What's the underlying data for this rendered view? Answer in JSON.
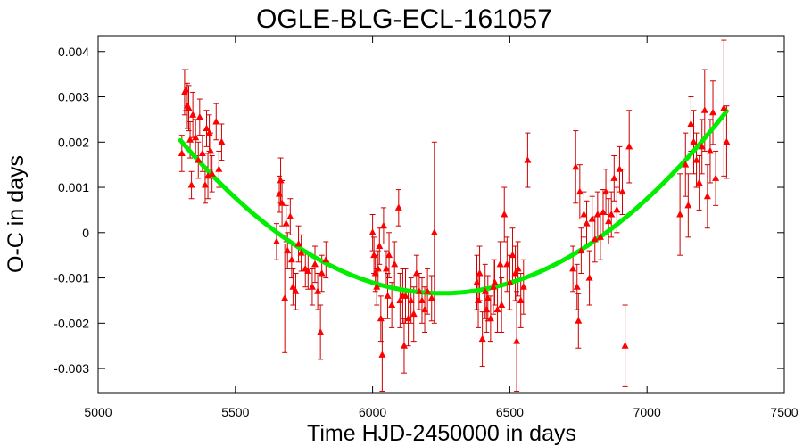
{
  "chart_data": {
    "type": "scatter",
    "title": "OGLE-BLG-ECL-161057",
    "xlabel": "Time HJD-2450000 in days",
    "ylabel": "O-C in days",
    "xlim": [
      5000,
      7500
    ],
    "ylim": [
      -0.00355,
      0.00435
    ],
    "grid": false,
    "xticks": [
      "5000",
      "5500",
      "6000",
      "6500",
      "7000",
      "7500"
    ],
    "xtick_values": [
      5000,
      5500,
      6000,
      6500,
      7000,
      7500
    ],
    "yticks": [
      "0.004",
      "0.003",
      "0.002",
      "0.001",
      "0",
      "-0.001",
      "-0.002",
      "-0.003"
    ],
    "ytick_values": [
      0.004,
      0.003,
      0.002,
      0.001,
      0,
      -0.001,
      -0.002,
      -0.003
    ],
    "colors": {
      "points": "#ff0000",
      "errorbars": "#cc0000",
      "fit": "#00ee00",
      "axes": "#000000"
    },
    "series": [
      {
        "kind": "points-with-errorbars",
        "points": [
          {
            "x": 5305,
            "y": 0.00175,
            "err": 0.0004
          },
          {
            "x": 5315,
            "y": 0.0031,
            "err": 0.0005
          },
          {
            "x": 5320,
            "y": 0.00315,
            "err": 0.00045
          },
          {
            "x": 5325,
            "y": 0.0028,
            "err": 0.0005
          },
          {
            "x": 5330,
            "y": 0.00275,
            "err": 0.0005
          },
          {
            "x": 5335,
            "y": 0.00205,
            "err": 0.0004
          },
          {
            "x": 5340,
            "y": 0.00105,
            "err": 0.0003
          },
          {
            "x": 5345,
            "y": 0.0026,
            "err": 0.0005
          },
          {
            "x": 5355,
            "y": 0.0021,
            "err": 0.0004
          },
          {
            "x": 5365,
            "y": 0.0016,
            "err": 0.0004
          },
          {
            "x": 5370,
            "y": 0.00255,
            "err": 0.0004
          },
          {
            "x": 5380,
            "y": 0.00175,
            "err": 0.0004
          },
          {
            "x": 5390,
            "y": 0.00105,
            "err": 0.0004
          },
          {
            "x": 5395,
            "y": 0.0023,
            "err": 0.0004
          },
          {
            "x": 5400,
            "y": 0.00125,
            "err": 0.0005
          },
          {
            "x": 5405,
            "y": 0.0022,
            "err": 0.0004
          },
          {
            "x": 5410,
            "y": 0.0018,
            "err": 0.0004
          },
          {
            "x": 5415,
            "y": 0.0013,
            "err": 0.0004
          },
          {
            "x": 5430,
            "y": 0.00245,
            "err": 0.0004
          },
          {
            "x": 5440,
            "y": 0.0014,
            "err": 0.0004
          },
          {
            "x": 5450,
            "y": 0.002,
            "err": 0.0004
          },
          {
            "x": 5650,
            "y": -0.0002,
            "err": 0.0004
          },
          {
            "x": 5660,
            "y": 0.00085,
            "err": 0.0004
          },
          {
            "x": 5665,
            "y": 0.00115,
            "err": 0.0005
          },
          {
            "x": 5670,
            "y": 0.00065,
            "err": 0.0005
          },
          {
            "x": 5680,
            "y": -0.00145,
            "err": 0.0012
          },
          {
            "x": 5685,
            "y": 0.0002,
            "err": 0.0004
          },
          {
            "x": 5690,
            "y": -0.0004,
            "err": 0.0004
          },
          {
            "x": 5700,
            "y": 0.00035,
            "err": 0.0004
          },
          {
            "x": 5705,
            "y": -0.0006,
            "err": 0.0004
          },
          {
            "x": 5710,
            "y": -0.0012,
            "err": 0.0004
          },
          {
            "x": 5720,
            "y": -0.0013,
            "err": 0.0004
          },
          {
            "x": 5730,
            "y": -0.00025,
            "err": 0.0004
          },
          {
            "x": 5740,
            "y": -0.00045,
            "err": 0.0004
          },
          {
            "x": 5755,
            "y": -0.0008,
            "err": 0.0004
          },
          {
            "x": 5765,
            "y": -0.00085,
            "err": 0.0004
          },
          {
            "x": 5780,
            "y": -0.0012,
            "err": 0.0004
          },
          {
            "x": 5790,
            "y": -0.0007,
            "err": 0.0004
          },
          {
            "x": 5800,
            "y": -0.0013,
            "err": 0.0004
          },
          {
            "x": 5810,
            "y": -0.0022,
            "err": 0.0006
          },
          {
            "x": 5815,
            "y": -0.0009,
            "err": 0.0004
          },
          {
            "x": 5830,
            "y": -0.0006,
            "err": 0.0004
          },
          {
            "x": 6000,
            "y": 0.0,
            "err": 0.0004
          },
          {
            "x": 6005,
            "y": -0.0005,
            "err": 0.0004
          },
          {
            "x": 6010,
            "y": -0.0009,
            "err": 0.0004
          },
          {
            "x": 6015,
            "y": -0.0012,
            "err": 0.0004
          },
          {
            "x": 6020,
            "y": -0.0008,
            "err": 0.0004
          },
          {
            "x": 6025,
            "y": -0.0003,
            "err": 0.0004
          },
          {
            "x": 6030,
            "y": -0.0019,
            "err": 0.0005
          },
          {
            "x": 6035,
            "y": -0.0027,
            "err": 0.0008
          },
          {
            "x": 6040,
            "y": 0.00015,
            "err": 0.0004
          },
          {
            "x": 6050,
            "y": -0.0008,
            "err": 0.0004
          },
          {
            "x": 6055,
            "y": -0.0014,
            "err": 0.0005
          },
          {
            "x": 6060,
            "y": -0.0005,
            "err": 0.0005
          },
          {
            "x": 6070,
            "y": -0.0016,
            "err": 0.0005
          },
          {
            "x": 6080,
            "y": -0.0007,
            "err": 0.0005
          },
          {
            "x": 6095,
            "y": 0.00055,
            "err": 0.0004
          },
          {
            "x": 6100,
            "y": -0.0015,
            "err": 0.0006
          },
          {
            "x": 6110,
            "y": -0.0014,
            "err": 0.0006
          },
          {
            "x": 6115,
            "y": -0.0025,
            "err": 0.0006
          },
          {
            "x": 6120,
            "y": -0.0014,
            "err": 0.0006
          },
          {
            "x": 6130,
            "y": -0.0019,
            "err": 0.0006
          },
          {
            "x": 6140,
            "y": -0.0015,
            "err": 0.0005
          },
          {
            "x": 6150,
            "y": -0.0018,
            "err": 0.0006
          },
          {
            "x": 6160,
            "y": -0.0009,
            "err": 0.0004
          },
          {
            "x": 6170,
            "y": -0.0013,
            "err": 0.0004
          },
          {
            "x": 6180,
            "y": -0.0015,
            "err": 0.0005
          },
          {
            "x": 6190,
            "y": -0.0017,
            "err": 0.0005
          },
          {
            "x": 6200,
            "y": -0.0013,
            "err": 0.0005
          },
          {
            "x": 6215,
            "y": -0.00145,
            "err": 0.0005
          },
          {
            "x": 6225,
            "y": 0.0,
            "err": 0.002
          },
          {
            "x": 6380,
            "y": -0.0011,
            "err": 0.0006
          },
          {
            "x": 6385,
            "y": -0.0015,
            "err": 0.0006
          },
          {
            "x": 6390,
            "y": -0.0009,
            "err": 0.0006
          },
          {
            "x": 6400,
            "y": -0.00235,
            "err": 0.0006
          },
          {
            "x": 6410,
            "y": -0.0013,
            "err": 0.0006
          },
          {
            "x": 6415,
            "y": -0.0017,
            "err": 0.0005
          },
          {
            "x": 6420,
            "y": -0.00145,
            "err": 0.0005
          },
          {
            "x": 6430,
            "y": -0.0019,
            "err": 0.0005
          },
          {
            "x": 6440,
            "y": -0.0012,
            "err": 0.0006
          },
          {
            "x": 6445,
            "y": -0.0011,
            "err": 0.0005
          },
          {
            "x": 6455,
            "y": -0.0017,
            "err": 0.0005
          },
          {
            "x": 6465,
            "y": -0.0007,
            "err": 0.0005
          },
          {
            "x": 6470,
            "y": -0.0016,
            "err": 0.0006
          },
          {
            "x": 6480,
            "y": 0.0004,
            "err": 0.0006
          },
          {
            "x": 6490,
            "y": -0.0007,
            "err": 0.0006
          },
          {
            "x": 6500,
            "y": -0.0011,
            "err": 0.0006
          },
          {
            "x": 6510,
            "y": -0.0005,
            "err": 0.0006
          },
          {
            "x": 6520,
            "y": -0.0009,
            "err": 0.0006
          },
          {
            "x": 6525,
            "y": -0.0024,
            "err": 0.0011
          },
          {
            "x": 6530,
            "y": -0.0008,
            "err": 0.0006
          },
          {
            "x": 6540,
            "y": -0.0015,
            "err": 0.0006
          },
          {
            "x": 6550,
            "y": -0.0012,
            "err": 0.0006
          },
          {
            "x": 6565,
            "y": 0.0016,
            "err": 0.0006
          },
          {
            "x": 6730,
            "y": -0.0008,
            "err": 0.0005
          },
          {
            "x": 6740,
            "y": 0.00145,
            "err": 0.0008
          },
          {
            "x": 6745,
            "y": -0.0012,
            "err": 0.0005
          },
          {
            "x": 6750,
            "y": -0.00195,
            "err": 0.0006
          },
          {
            "x": 6755,
            "y": 0.0009,
            "err": 0.0006
          },
          {
            "x": 6760,
            "y": -0.0004,
            "err": 0.0005
          },
          {
            "x": 6770,
            "y": 0.0004,
            "err": 0.0005
          },
          {
            "x": 6780,
            "y": 0.0002,
            "err": 0.0005
          },
          {
            "x": 6790,
            "y": -0.001,
            "err": 0.0006
          },
          {
            "x": 6800,
            "y": 0.0003,
            "err": 0.0005
          },
          {
            "x": 6810,
            "y": -0.00015,
            "err": 0.0005
          },
          {
            "x": 6820,
            "y": 0.0004,
            "err": 0.0005
          },
          {
            "x": 6830,
            "y": -0.0001,
            "err": 0.0005
          },
          {
            "x": 6840,
            "y": 0.00045,
            "err": 0.0005
          },
          {
            "x": 6850,
            "y": 0.0009,
            "err": 0.0005
          },
          {
            "x": 6860,
            "y": 0.00025,
            "err": 0.0005
          },
          {
            "x": 6870,
            "y": 0.0004,
            "err": 0.0005
          },
          {
            "x": 6880,
            "y": 0.0012,
            "err": 0.0005
          },
          {
            "x": 6890,
            "y": 0.0005,
            "err": 0.0005
          },
          {
            "x": 6900,
            "y": 0.0014,
            "err": 0.0005
          },
          {
            "x": 6910,
            "y": 0.0009,
            "err": 0.0005
          },
          {
            "x": 6920,
            "y": -0.0025,
            "err": 0.0009
          },
          {
            "x": 6935,
            "y": 0.0019,
            "err": 0.0008
          },
          {
            "x": 7120,
            "y": 0.0004,
            "err": 0.0009
          },
          {
            "x": 7140,
            "y": 0.0015,
            "err": 0.0007
          },
          {
            "x": 7150,
            "y": 0.0006,
            "err": 0.0007
          },
          {
            "x": 7160,
            "y": 0.0024,
            "err": 0.0006
          },
          {
            "x": 7170,
            "y": 0.002,
            "err": 0.0007
          },
          {
            "x": 7180,
            "y": 0.0016,
            "err": 0.0006
          },
          {
            "x": 7190,
            "y": 0.0011,
            "err": 0.0006
          },
          {
            "x": 7200,
            "y": 0.0019,
            "err": 0.0006
          },
          {
            "x": 7210,
            "y": 0.0027,
            "err": 0.0009
          },
          {
            "x": 7220,
            "y": 0.0008,
            "err": 0.0007
          },
          {
            "x": 7230,
            "y": 0.0018,
            "err": 0.0007
          },
          {
            "x": 7240,
            "y": 0.00265,
            "err": 0.0007
          },
          {
            "x": 7250,
            "y": 0.0012,
            "err": 0.0006
          },
          {
            "x": 7280,
            "y": 0.00275,
            "err": 0.0015
          },
          {
            "x": 7290,
            "y": 0.002,
            "err": 0.0008
          }
        ]
      },
      {
        "kind": "fit-curve",
        "shape": "quadratic",
        "x": [
          5300,
          5500,
          5700,
          5900,
          6100,
          6150,
          6300,
          6500,
          6700,
          6900,
          7100,
          7290
        ],
        "y": [
          0.00205,
          0.0009,
          -0.00015,
          -0.00095,
          -0.00148,
          -0.0015,
          -0.00138,
          -0.00105,
          -0.0004,
          0.00055,
          0.0014,
          0.0024
        ]
      }
    ]
  }
}
